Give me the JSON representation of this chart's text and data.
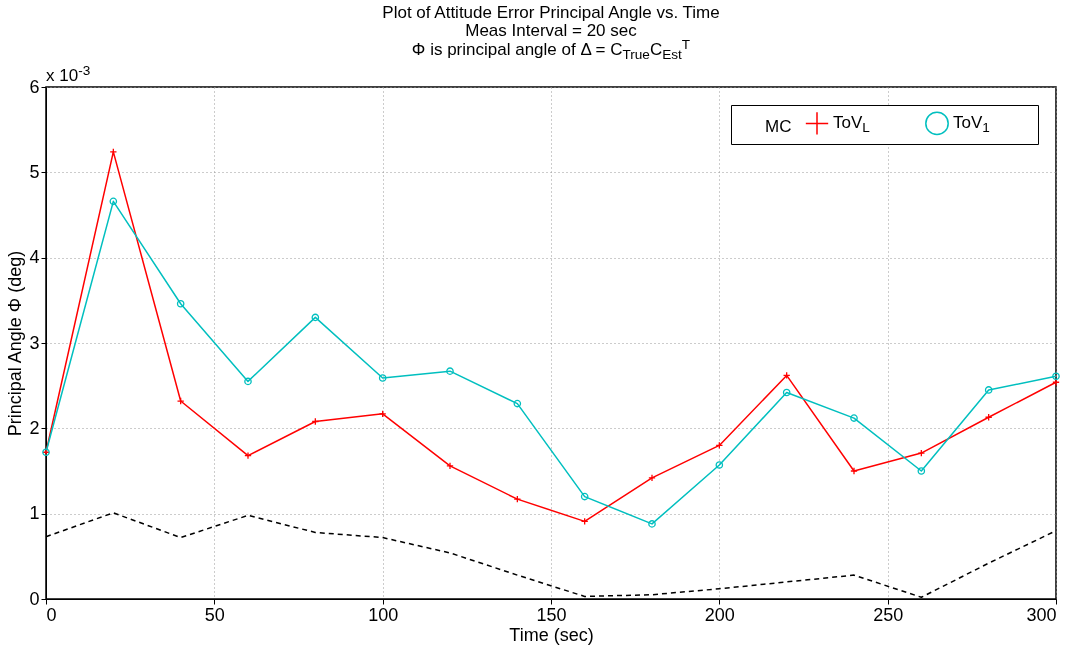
{
  "chart_data": {
    "type": "line",
    "title": "Plot of Attitude Error Principal Angle vs. Time",
    "subtitle": "Meas Interval = 20 sec\nΦ is principal angle of Δ = C$_{True}$C$_{Est}$$^{T}$",
    "xlabel": "Time (sec)",
    "ylabel": "Principal Angle Φ (deg)",
    "annotations": [
      "x 10$^{-3}$"
    ],
    "x": [
      0,
      20,
      40,
      60,
      80,
      100,
      120,
      140,
      160,
      180,
      200,
      220,
      240,
      260,
      280,
      300
    ],
    "series": [
      {
        "name": "MC",
        "color": "#000000",
        "line_style": "dashed",
        "marker": "none",
        "values": [
          0.73,
          1.01,
          0.72,
          0.98,
          0.78,
          0.72,
          0.54,
          0.28,
          0.03,
          0.05,
          0.12,
          0.2,
          0.28,
          0.02,
          0.42,
          0.8
        ]
      },
      {
        "name": "ToV$_{L}$",
        "color": "#ff0000",
        "line_style": "solid",
        "marker": "cross",
        "values": [
          1.72,
          5.24,
          2.32,
          1.68,
          2.08,
          2.17,
          1.56,
          1.17,
          0.91,
          1.42,
          1.8,
          2.62,
          1.5,
          1.71,
          2.13,
          2.54
        ]
      },
      {
        "name": "ToV$_{1}$",
        "color": "#00bfbf",
        "line_style": "solid",
        "marker": "circle",
        "values": [
          1.72,
          4.66,
          3.46,
          2.55,
          3.3,
          2.59,
          2.67,
          2.29,
          1.2,
          0.88,
          1.57,
          2.42,
          2.12,
          1.5,
          2.45,
          2.61
        ]
      }
    ],
    "xlim": [
      0,
      300
    ],
    "xticks": [
      0,
      50,
      100,
      150,
      200,
      250,
      300
    ],
    "ylim": [
      0,
      6
    ],
    "yticks": [
      0,
      1,
      2,
      3,
      4,
      5,
      6
    ],
    "grid": true,
    "legend": "top right"
  }
}
